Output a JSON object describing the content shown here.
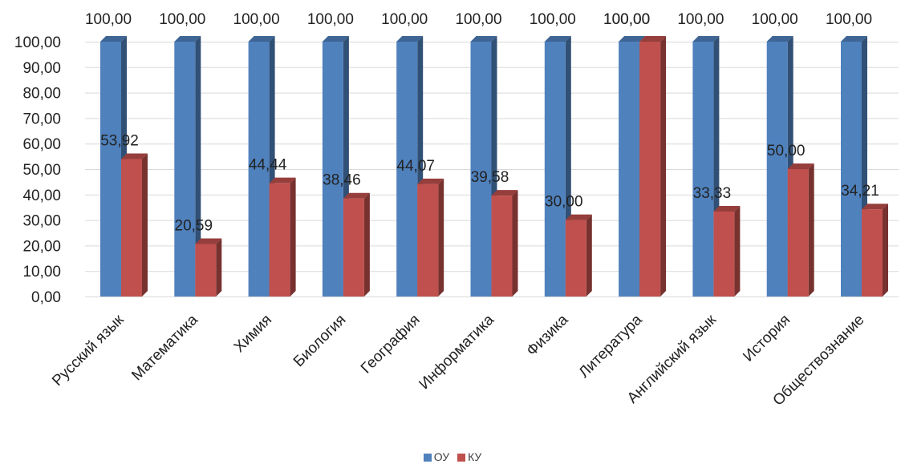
{
  "chart_data": {
    "type": "bar",
    "title": "",
    "xlabel": "",
    "ylabel": "",
    "ylim": [
      0,
      100
    ],
    "ytick_step": 10,
    "ytick_labels": [
      "0,00",
      "10,00",
      "20,00",
      "30,00",
      "40,00",
      "50,00",
      "60,00",
      "70,00",
      "80,00",
      "90,00",
      "100,00"
    ],
    "grid": true,
    "legend_position": "bottom",
    "categories": [
      "Русский язык",
      "Математика",
      "Химия",
      "Биология",
      "География",
      "Информатика",
      "Физика",
      "Литература",
      "Английский язык",
      "История",
      "Обществознание"
    ],
    "series": [
      {
        "name": "ОУ",
        "color": "#4f81bd",
        "values": [
          100,
          100,
          100,
          100,
          100,
          100,
          100,
          100,
          100,
          100,
          100
        ],
        "labels": [
          "100,00",
          "100,00",
          "100,00",
          "100,00",
          "100,00",
          "100,00",
          "100,00",
          "100,00",
          "100,00",
          "100,00",
          "100,00"
        ]
      },
      {
        "name": "КУ",
        "color": "#c0504d",
        "values": [
          53.92,
          20.59,
          44.44,
          38.46,
          44.07,
          39.58,
          30.0,
          100,
          33.33,
          50.0,
          34.21
        ],
        "labels": [
          "53,92",
          "20,59",
          "44,44",
          "38,46",
          "44,07",
          "39,58",
          "30,00",
          "100,00",
          "33,33",
          "50,00",
          "34,21"
        ]
      }
    ]
  }
}
